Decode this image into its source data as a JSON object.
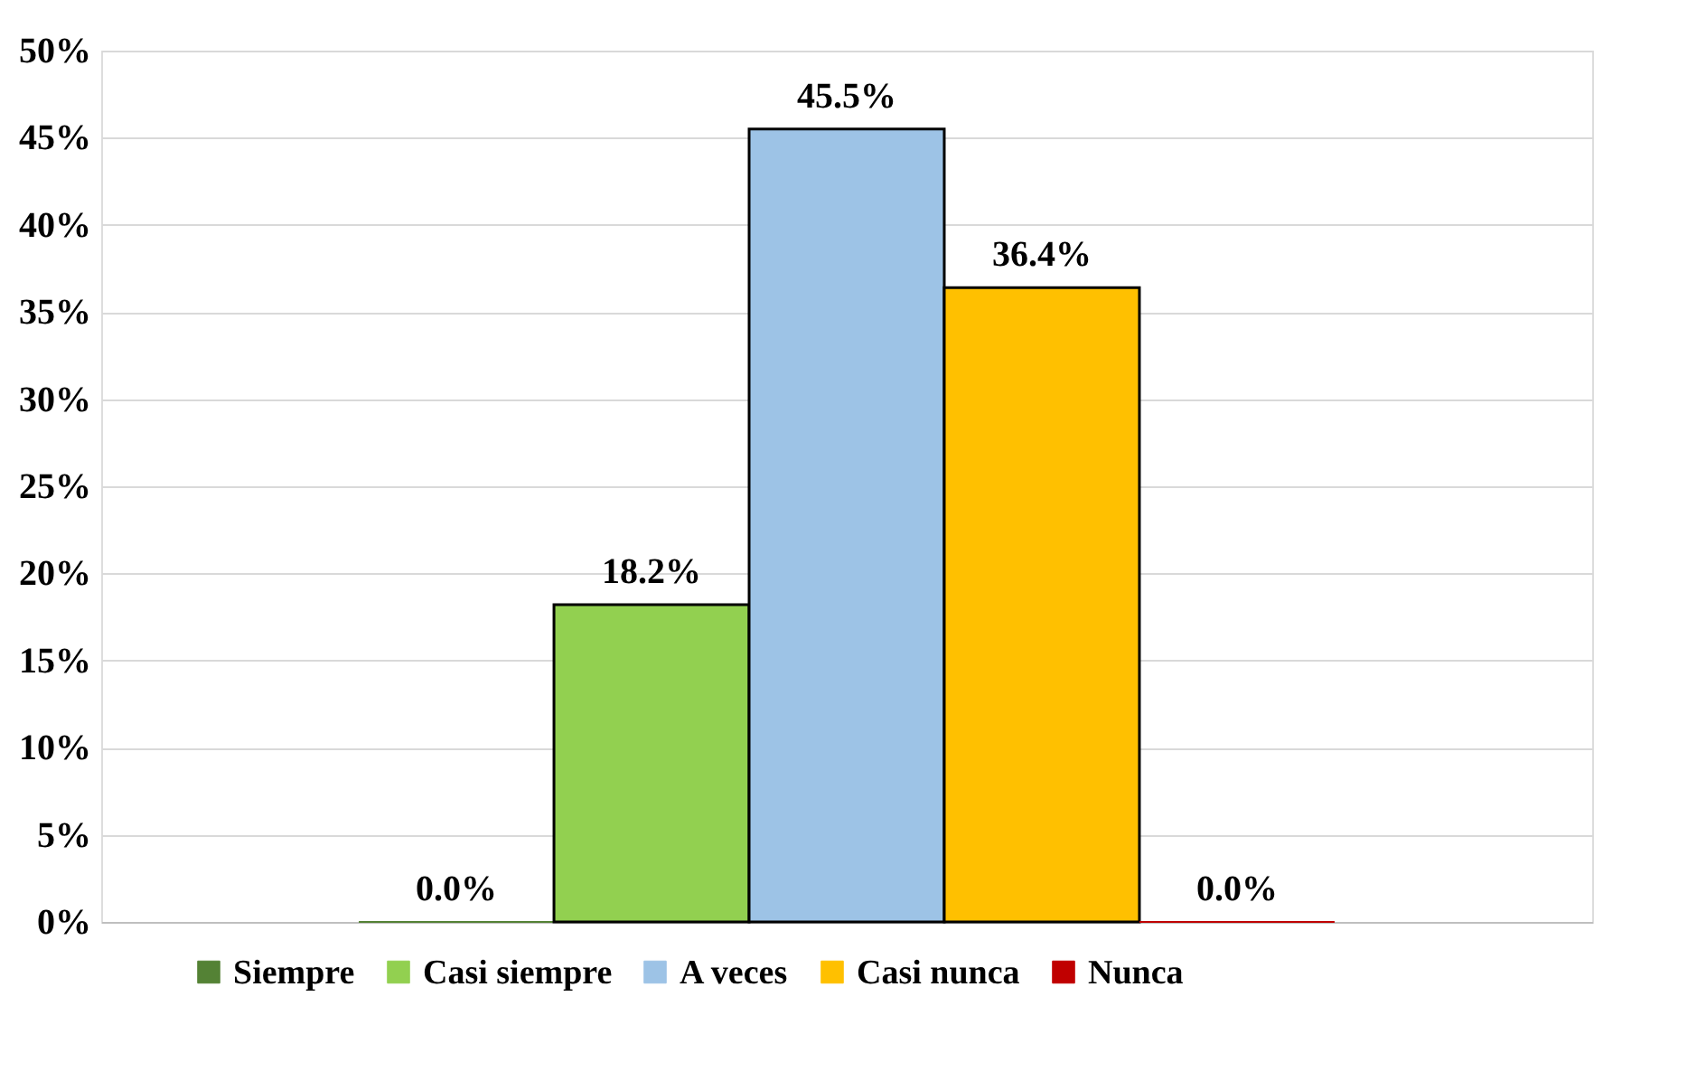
{
  "chart_data": {
    "type": "bar",
    "categories": [
      null
    ],
    "series": [
      {
        "name": "Siempre",
        "color": "#548235",
        "values": [
          0.0
        ],
        "value_labels": [
          "0.0%"
        ]
      },
      {
        "name": "Casi siempre",
        "color": "#92d050",
        "values": [
          18.2
        ],
        "value_labels": [
          "18.2%"
        ]
      },
      {
        "name": "A veces",
        "color": "#9dc3e6",
        "values": [
          45.5
        ],
        "value_labels": [
          "45.5%"
        ]
      },
      {
        "name": "Casi nunca",
        "color": "#ffc000",
        "values": [
          36.4
        ],
        "value_labels": [
          "36.4%"
        ]
      },
      {
        "name": "Nunca",
        "color": "#c00000",
        "values": [
          0.0
        ],
        "value_labels": [
          "0.0%"
        ]
      }
    ],
    "ylim": [
      0,
      50
    ],
    "yticks": [
      {
        "value": 0,
        "label": "0%"
      },
      {
        "value": 5,
        "label": "5%"
      },
      {
        "value": 10,
        "label": "10%"
      },
      {
        "value": 15,
        "label": "15%"
      },
      {
        "value": 20,
        "label": "20%"
      },
      {
        "value": 25,
        "label": "25%"
      },
      {
        "value": 30,
        "label": "30%"
      },
      {
        "value": 35,
        "label": "35%"
      },
      {
        "value": 40,
        "label": "40%"
      },
      {
        "value": 45,
        "label": "45%"
      },
      {
        "value": 50,
        "label": "50%"
      }
    ],
    "grid": "y",
    "legend": "bottom",
    "tick_labels": "y"
  }
}
